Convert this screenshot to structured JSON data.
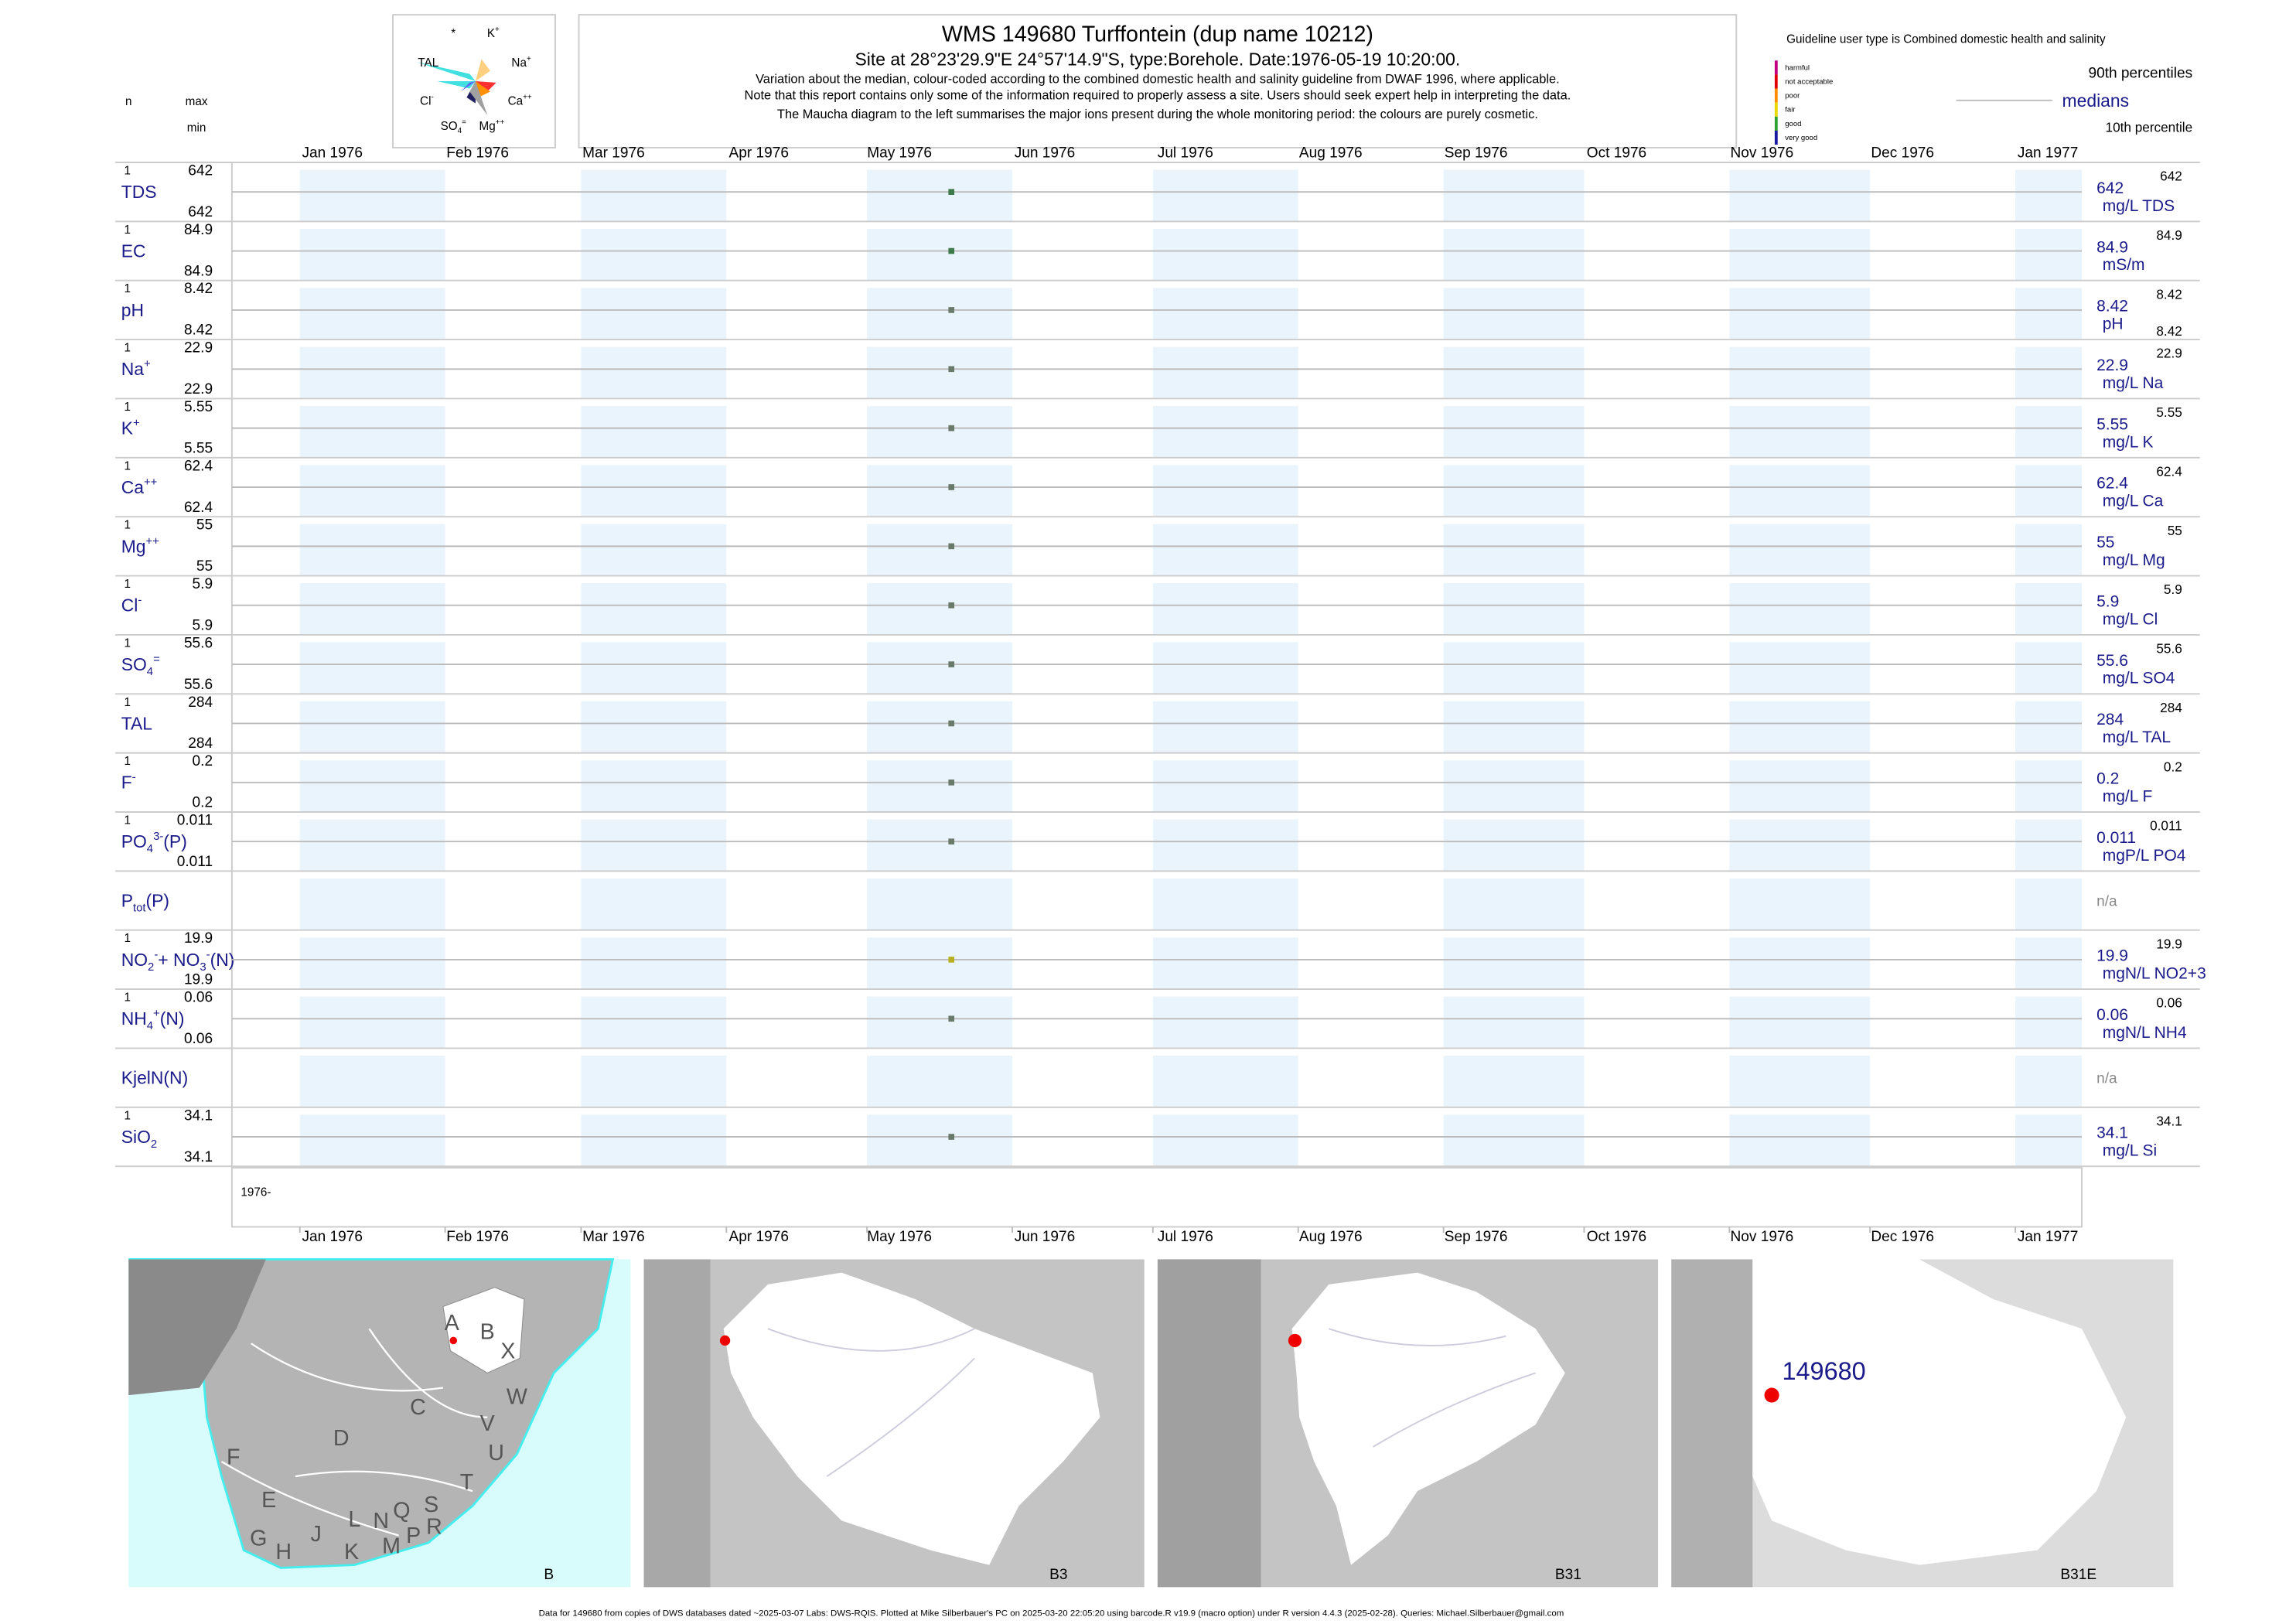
{
  "chart_data": {
    "type": "scatter",
    "title": "WMS 149680  Turffontein (dup name 10212)",
    "subtitle": "Site at 28°23'29.9\"E 24°57'14.9\"S, type:Borehole. Date:1976-05-19 10:20:00.",
    "notes": [
      "Variation about the median,  colour-coded according to the combined domestic health and salinity guideline from DWAF 1996, where applicable.",
      "Note that this report contains only some of the information required to properly assess a site. Users should seek expert help in interpreting the data.",
      "The Maucha diagram to the left summarises the major ions present during the whole monitoring period: the colours are purely cosmetic."
    ],
    "guideline": "Guideline user type is Combined domestic health and salinity",
    "guideline_classes": [
      {
        "name": "harmful",
        "color": "#c0007f"
      },
      {
        "name": "not acceptable",
        "color": "#e00000"
      },
      {
        "name": "poor",
        "color": "#ff8c00"
      },
      {
        "name": "fair",
        "color": "#e8d800"
      },
      {
        "name": "good",
        "color": "#30a030"
      },
      {
        "name": "very good",
        "color": "#1a1aa0"
      }
    ],
    "legend": {
      "p90": "90th percentiles",
      "median": "medians",
      "p10": "10th percentile"
    },
    "left_header": {
      "n": "n",
      "max": "max",
      "min": "min"
    },
    "maucha": [
      [
        {
          "t": "*"
        }
      ],
      [
        {
          "t": "K"
        },
        {
          "t": "+",
          "s": "sup"
        }
      ],
      [
        {
          "t": "TAL"
        }
      ],
      [
        {
          "t": "Na"
        },
        {
          "t": "+",
          "s": "sup"
        }
      ],
      [
        {
          "t": "Cl"
        },
        {
          "t": "-",
          "s": "sup"
        }
      ],
      [
        {
          "t": "Ca"
        },
        {
          "t": "++",
          "s": "sup"
        }
      ],
      [
        {
          "t": "SO"
        },
        {
          "t": "4",
          "s": "sub"
        },
        {
          "t": "=",
          "s": "sup"
        }
      ],
      [
        {
          "t": "Mg"
        },
        {
          "t": "++",
          "s": "sup"
        }
      ]
    ],
    "xticks": [
      {
        "value": "1976-01",
        "label": "Jan 1976"
      },
      {
        "value": "1976-02",
        "label": "Feb 1976"
      },
      {
        "value": "1976-03",
        "label": "Mar 1976"
      },
      {
        "value": "1976-04",
        "label": "Apr 1976"
      },
      {
        "value": "1976-05",
        "label": "May 1976"
      },
      {
        "value": "1976-06",
        "label": "Jun 1976"
      },
      {
        "value": "1976-07",
        "label": "Jul 1976"
      },
      {
        "value": "1976-08",
        "label": "Aug 1976"
      },
      {
        "value": "1976-09",
        "label": "Sep 1976"
      },
      {
        "value": "1976-10",
        "label": "Oct 1976"
      },
      {
        "value": "1976-11",
        "label": "Nov 1976"
      },
      {
        "value": "1976-12",
        "label": "Dec 1976"
      },
      {
        "value": "1977-01",
        "label": "Jan 1977"
      }
    ],
    "sample_date": "1976-05-19",
    "year_label": "1976-",
    "rows": [
      {
        "label": [
          {
            "t": "TDS"
          }
        ],
        "n": 1,
        "max": 642,
        "min": 642,
        "median": 642,
        "p90": 642,
        "unit": "mg/L TDS",
        "color": "#3d7a4a"
      },
      {
        "label": [
          {
            "t": "EC"
          }
        ],
        "n": 1,
        "max": 84.9,
        "min": 84.9,
        "median": 84.9,
        "p90": 84.9,
        "unit": "mS/m",
        "color": "#3d7a4a"
      },
      {
        "label": [
          {
            "t": "pH"
          }
        ],
        "n": 1,
        "max": 8.42,
        "min": 8.42,
        "median": 8.42,
        "p90": 8.42,
        "p10": 8.42,
        "unit": "pH",
        "color": "#6a7a6a"
      },
      {
        "label": [
          {
            "t": "Na"
          },
          {
            "t": "+",
            "s": "sup"
          }
        ],
        "n": 1,
        "max": 22.9,
        "min": 22.9,
        "median": 22.9,
        "p90": 22.9,
        "unit": "mg/L Na",
        "color": "#6a7a6a"
      },
      {
        "label": [
          {
            "t": "K"
          },
          {
            "t": "+",
            "s": "sup"
          }
        ],
        "n": 1,
        "max": 5.55,
        "min": 5.55,
        "median": 5.55,
        "p90": 5.55,
        "unit": "mg/L K",
        "color": "#6a7a6a"
      },
      {
        "label": [
          {
            "t": "Ca"
          },
          {
            "t": "++",
            "s": "sup"
          }
        ],
        "n": 1,
        "max": 62.4,
        "min": 62.4,
        "median": 62.4,
        "p90": 62.4,
        "unit": "mg/L Ca",
        "color": "#6a7a6a"
      },
      {
        "label": [
          {
            "t": "Mg"
          },
          {
            "t": "++",
            "s": "sup"
          }
        ],
        "n": 1,
        "max": 55,
        "min": 55,
        "median": 55,
        "p90": 55,
        "unit": "mg/L Mg",
        "color": "#6a7a6a"
      },
      {
        "label": [
          {
            "t": "Cl"
          },
          {
            "t": "-",
            "s": "sup"
          }
        ],
        "n": 1,
        "max": 5.9,
        "min": 5.9,
        "median": 5.9,
        "p90": 5.9,
        "unit": "mg/L Cl",
        "color": "#6a7a6a"
      },
      {
        "label": [
          {
            "t": "SO"
          },
          {
            "t": "4",
            "s": "sub"
          },
          {
            "t": "=",
            "s": "sup"
          }
        ],
        "n": 1,
        "max": 55.6,
        "min": 55.6,
        "median": 55.6,
        "p90": 55.6,
        "unit": "mg/L SO4",
        "color": "#6a7a6a"
      },
      {
        "label": [
          {
            "t": "TAL"
          }
        ],
        "n": 1,
        "max": 284,
        "min": 284,
        "median": 284,
        "p90": 284,
        "unit": "mg/L TAL",
        "color": "#6a7a6a"
      },
      {
        "label": [
          {
            "t": "F"
          },
          {
            "t": "-",
            "s": "sup"
          }
        ],
        "n": 1,
        "max": 0.2,
        "min": 0.2,
        "median": 0.2,
        "p90": 0.2,
        "unit": "mg/L F",
        "color": "#6a7a6a"
      },
      {
        "label": [
          {
            "t": "PO"
          },
          {
            "t": "4",
            "s": "sub"
          },
          {
            "t": "3-",
            "s": "sup"
          },
          {
            "t": "(P)"
          }
        ],
        "n": 1,
        "max": 0.011,
        "min": 0.011,
        "median": 0.011,
        "p90": 0.011,
        "unit": "mgP/L PO4",
        "color": "#6a7a6a"
      },
      {
        "label": [
          {
            "t": "P"
          },
          {
            "t": "tot",
            "s": "sub"
          },
          {
            "t": "(P)"
          }
        ],
        "na": "n/a"
      },
      {
        "label": [
          {
            "t": "NO"
          },
          {
            "t": "2",
            "s": "sub"
          },
          {
            "t": "-",
            "s": "sup"
          },
          {
            "t": "+ NO"
          },
          {
            "t": "3",
            "s": "sub"
          },
          {
            "t": "-",
            "s": "sup"
          },
          {
            "t": "(N)"
          }
        ],
        "n": 1,
        "max": 19.9,
        "min": 19.9,
        "median": 19.9,
        "p90": 19.9,
        "unit": "mgN/L NO2+3",
        "color": "#b8b020"
      },
      {
        "label": [
          {
            "t": "NH"
          },
          {
            "t": "4",
            "s": "sub"
          },
          {
            "t": "+",
            "s": "sup"
          },
          {
            "t": "(N)"
          }
        ],
        "n": 1,
        "max": 0.06,
        "min": 0.06,
        "median": 0.06,
        "p90": 0.06,
        "unit": "mgN/L NH4",
        "color": "#6a7a6a"
      },
      {
        "label": [
          {
            "t": "KjelN(N)"
          }
        ],
        "na": "n/a"
      },
      {
        "label": [
          {
            "t": "SiO"
          },
          {
            "t": "2",
            "s": "sub"
          }
        ],
        "n": 1,
        "max": 34.1,
        "min": 34.1,
        "median": 34.1,
        "p90": 34.1,
        "unit": "mg/L Si",
        "color": "#6a7a6a"
      }
    ],
    "maps": [
      {
        "name": "B",
        "regions": [
          "A",
          "B",
          "X",
          "C",
          "W",
          "D",
          "V",
          "U",
          "F",
          "T",
          "E",
          "L",
          "N",
          "Q",
          "S",
          "R",
          "G",
          "H",
          "J",
          "K",
          "M",
          "P"
        ]
      },
      {
        "name": "B3"
      },
      {
        "name": "B31"
      },
      {
        "name": "B31E",
        "site": "149680"
      }
    ],
    "footer": "Data for 149680 from copies of DWS databases dated ~2025-03-07 Labs: DWS-RQIS. Plotted at Mike Silberbauer's PC on 2025-03-20 22:05:20 using barcode.R v19.9 (macro option) under R version 4.4.3 (2025-02-28). Queries: Michael.Silberbauer@gmail.com"
  }
}
